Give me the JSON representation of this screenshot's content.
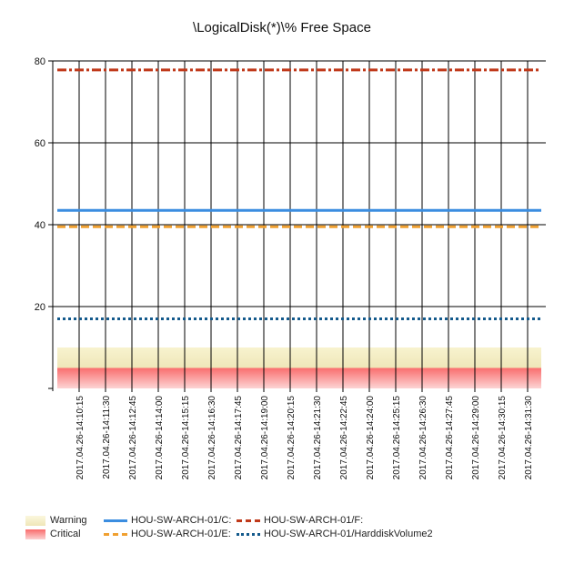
{
  "chart_data": {
    "type": "line",
    "title": "\\LogicalDisk(*)\\% Free Space",
    "xlabel": "",
    "ylabel": "",
    "ylim": [
      0,
      80
    ],
    "yticks": [
      20,
      40,
      60,
      80
    ],
    "grid": true,
    "legend_position": "bottom",
    "categories": [
      "2017.04.26-14:10:15",
      "2017.04.26-14:11:30",
      "2017.04.26-14:12:45",
      "2017.04.26-14:14:00",
      "2017.04.26-14:15:15",
      "2017.04.26-14:16:30",
      "2017.04.26-14:17:45",
      "2017.04.26-14:19:00",
      "2017.04.26-14:20:15",
      "2017.04.26-14:21:30",
      "2017.04.26-14:22:45",
      "2017.04.26-14:24:00",
      "2017.04.26-14:25:15",
      "2017.04.26-14:26:30",
      "2017.04.26-14:27:45",
      "2017.04.26-14:29:00",
      "2017.04.26-14:30:15",
      "2017.04.26-14:31:30"
    ],
    "bands": [
      {
        "name": "Warning",
        "from": 5,
        "to": 10,
        "color_top": "#f8f3cf",
        "color_bottom": "#efe6b8"
      },
      {
        "name": "Critical",
        "from": 0,
        "to": 5,
        "color_top": "#fa6d6d",
        "color_bottom": "#fcd4d4"
      }
    ],
    "series": [
      {
        "name": "HOU-SW-ARCH-01/C:",
        "value": 43.5,
        "color": "#3b8de0",
        "style": "solid"
      },
      {
        "name": "HOU-SW-ARCH-01/E:",
        "value": 39.5,
        "color": "#f0a030",
        "style": "dashed"
      },
      {
        "name": "HOU-SW-ARCH-01/F:",
        "value": 77.8,
        "color": "#c0391a",
        "style": "dashdot"
      },
      {
        "name": "HOU-SW-ARCH-01/HarddiskVolume2",
        "value": 17,
        "color": "#145a8c",
        "style": "dotted"
      }
    ]
  }
}
